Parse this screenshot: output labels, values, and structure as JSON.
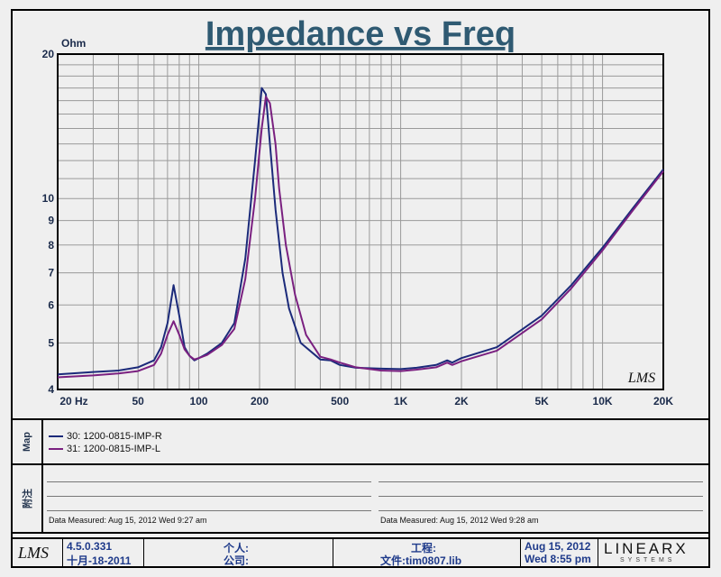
{
  "chart_data": {
    "type": "line",
    "title": "Impedance vs Freq",
    "ylabel": "Ohm",
    "xscale": "log",
    "yscale": "log",
    "xlim": [
      20,
      20000
    ],
    "ylim": [
      4,
      20
    ],
    "grid": true,
    "x_ticks": [
      "20 Hz",
      "50",
      "100",
      "200",
      "500",
      "1K",
      "2K",
      "5K",
      "10K",
      "20K"
    ],
    "y_ticks": [
      "20",
      "10",
      "9",
      "8",
      "7",
      "6",
      "5",
      "4"
    ],
    "series": [
      {
        "name": "30: 1200-0815-IMP-R",
        "color": "#1b2a7a",
        "x": [
          20,
          30,
          40,
          50,
          60,
          65,
          70,
          75,
          80,
          85,
          90,
          95,
          100,
          110,
          130,
          150,
          170,
          190,
          205,
          215,
          225,
          240,
          260,
          280,
          320,
          400,
          450,
          500,
          600,
          800,
          1000,
          1200,
          1500,
          1700,
          1800,
          2000,
          3000,
          5000,
          7000,
          10000,
          14000,
          20000
        ],
        "y": [
          4.3,
          4.35,
          4.38,
          4.45,
          4.6,
          4.9,
          5.5,
          6.6,
          5.7,
          4.9,
          4.7,
          4.6,
          4.65,
          4.75,
          5.0,
          5.5,
          7.5,
          12,
          17,
          16.5,
          13,
          9.5,
          7.0,
          5.9,
          5.0,
          4.62,
          4.6,
          4.5,
          4.44,
          4.42,
          4.41,
          4.44,
          4.5,
          4.6,
          4.55,
          4.65,
          4.9,
          5.7,
          6.6,
          7.9,
          9.5,
          11.5
        ]
      },
      {
        "name": "31: 1200-0815-IMP-L",
        "color": "#7a2080",
        "x": [
          20,
          30,
          40,
          50,
          60,
          65,
          70,
          75,
          80,
          85,
          90,
          95,
          100,
          110,
          130,
          150,
          170,
          190,
          205,
          215,
          225,
          240,
          250,
          270,
          300,
          340,
          400,
          450,
          500,
          600,
          800,
          1000,
          1200,
          1500,
          1700,
          1800,
          2000,
          3000,
          5000,
          7000,
          10000,
          14000,
          20000
        ],
        "y": [
          4.24,
          4.28,
          4.32,
          4.37,
          4.5,
          4.75,
          5.2,
          5.55,
          5.2,
          4.85,
          4.7,
          4.62,
          4.65,
          4.72,
          4.95,
          5.35,
          6.8,
          10,
          14,
          16.3,
          15.8,
          13,
          10.5,
          8.0,
          6.3,
          5.2,
          4.68,
          4.62,
          4.55,
          4.45,
          4.38,
          4.37,
          4.4,
          4.45,
          4.55,
          4.5,
          4.58,
          4.82,
          5.6,
          6.5,
          7.8,
          9.4,
          11.4
        ]
      }
    ]
  },
  "watermark": "LMS",
  "map_label": "Map",
  "notes_label": "附注",
  "notes": {
    "left_date": "Data Measured: Aug 15, 2012   Wed   9:27 am",
    "right_date": "Data Measured: Aug 15, 2012   Wed   9:28 am"
  },
  "footer": {
    "logo": "LMS",
    "version": "4.5.0.331",
    "version_date": "十月-18-2011",
    "person_label": "个人:",
    "company_label": "公司:",
    "project_label": "工程:",
    "file_label": "文件:tim0807.lib",
    "date": "Aug 15, 2012",
    "daytime": "Wed   8:55 pm",
    "brand": "LINEARX",
    "brand_sub": "SYSTEMS"
  }
}
